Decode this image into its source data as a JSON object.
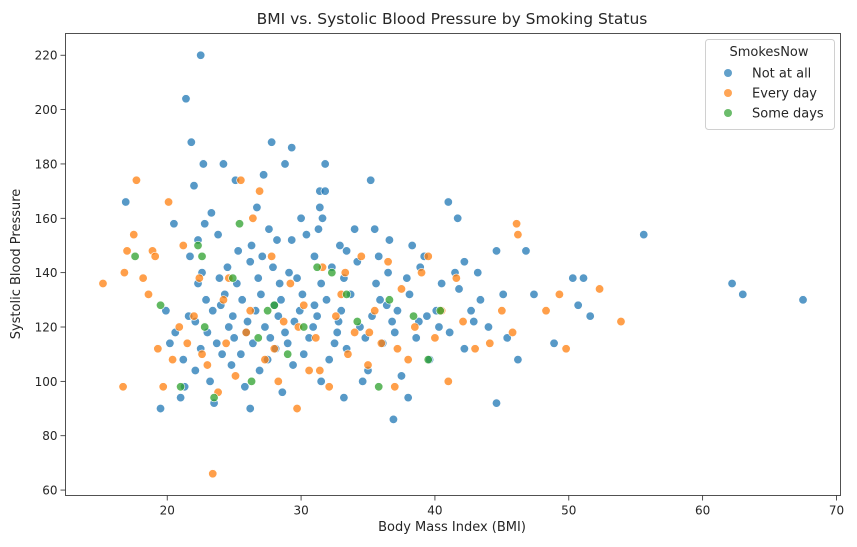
{
  "chart_data": {
    "type": "scatter",
    "title": "BMI vs. Systolic Blood Pressure by Smoking Status",
    "xlabel": "Body Mass Index (BMI)",
    "ylabel": "Systolic Blood Pressure",
    "xlim": [
      12.4,
      70.3
    ],
    "ylim": [
      58,
      228
    ],
    "xticks": [
      20,
      30,
      40,
      50,
      60,
      70
    ],
    "yticks": [
      60,
      80,
      100,
      120,
      140,
      160,
      180,
      200,
      220
    ],
    "grid": false,
    "legend": {
      "title": "SmokesNow",
      "position": "top-right"
    },
    "series": [
      {
        "name": "Not at all",
        "color": "#1f77b4",
        "points": [
          [
            22.5,
            220
          ],
          [
            21.4,
            204
          ],
          [
            21.8,
            188
          ],
          [
            27.8,
            188
          ],
          [
            29.3,
            186
          ],
          [
            22.7,
            180
          ],
          [
            24.2,
            180
          ],
          [
            28.8,
            180
          ],
          [
            31.8,
            180
          ],
          [
            22.0,
            172
          ],
          [
            25.1,
            174
          ],
          [
            35.2,
            174
          ],
          [
            27.2,
            176
          ],
          [
            31.4,
            170
          ],
          [
            31.8,
            170
          ],
          [
            16.9,
            166
          ],
          [
            26.7,
            164
          ],
          [
            31.4,
            164
          ],
          [
            41.0,
            166
          ],
          [
            20.5,
            158
          ],
          [
            23.3,
            162
          ],
          [
            30.0,
            160
          ],
          [
            31.6,
            160
          ],
          [
            41.7,
            160
          ],
          [
            22.8,
            158
          ],
          [
            27.6,
            156
          ],
          [
            31.3,
            156
          ],
          [
            34.0,
            156
          ],
          [
            35.5,
            156
          ],
          [
            22.3,
            152
          ],
          [
            23.8,
            154
          ],
          [
            26.3,
            150
          ],
          [
            28.2,
            152
          ],
          [
            29.3,
            152
          ],
          [
            30.4,
            154
          ],
          [
            32.9,
            150
          ],
          [
            36.6,
            152
          ],
          [
            44.6,
            148
          ],
          [
            46.8,
            148
          ],
          [
            55.6,
            154
          ],
          [
            21.7,
            146
          ],
          [
            25.3,
            148
          ],
          [
            27.1,
            146
          ],
          [
            31.0,
            146
          ],
          [
            33.4,
            148
          ],
          [
            35.8,
            146
          ],
          [
            38.3,
            150
          ],
          [
            39.2,
            146
          ],
          [
            42.2,
            144
          ],
          [
            22.6,
            140
          ],
          [
            24.5,
            142
          ],
          [
            26.2,
            144
          ],
          [
            27.9,
            142
          ],
          [
            29.1,
            140
          ],
          [
            32.3,
            142
          ],
          [
            34.2,
            144
          ],
          [
            36.5,
            140
          ],
          [
            38.9,
            142
          ],
          [
            41.5,
            140
          ],
          [
            43.2,
            140
          ],
          [
            47.4,
            132
          ],
          [
            50.3,
            138
          ],
          [
            50.7,
            128
          ],
          [
            51.1,
            138
          ],
          [
            51.6,
            124
          ],
          [
            62.2,
            136
          ],
          [
            63.0,
            132
          ],
          [
            67.5,
            130
          ],
          [
            48.9,
            114
          ],
          [
            46.2,
            108
          ],
          [
            44.6,
            92
          ],
          [
            36.9,
            86
          ],
          [
            26.2,
            90
          ],
          [
            23.5,
            92
          ],
          [
            19.5,
            90
          ],
          [
            21.0,
            94
          ],
          [
            33.2,
            94
          ],
          [
            38.0,
            94
          ],
          [
            21.3,
            98
          ],
          [
            23.2,
            100
          ],
          [
            25.8,
            98
          ],
          [
            28.6,
            96
          ],
          [
            31.5,
            100
          ],
          [
            34.6,
            100
          ],
          [
            37.5,
            102
          ],
          [
            22.1,
            104
          ],
          [
            24.8,
            106
          ],
          [
            26.9,
            104
          ],
          [
            29.4,
            106
          ],
          [
            32.1,
            108
          ],
          [
            35.0,
            104
          ],
          [
            39.6,
            108
          ],
          [
            42.2,
            112
          ],
          [
            20.2,
            114
          ],
          [
            22.5,
            112
          ],
          [
            24.1,
            110
          ],
          [
            26.4,
            114
          ],
          [
            28.1,
            112
          ],
          [
            30.2,
            110
          ],
          [
            33.4,
            112
          ],
          [
            36.1,
            114
          ],
          [
            38.6,
            116
          ],
          [
            41.1,
            118
          ],
          [
            44.0,
            120
          ],
          [
            45.4,
            116
          ],
          [
            23.0,
            118
          ],
          [
            24.6,
            120
          ],
          [
            25.9,
            118
          ],
          [
            27.3,
            120
          ],
          [
            28.8,
            118
          ],
          [
            30.9,
            120
          ],
          [
            32.7,
            118
          ],
          [
            34.4,
            120
          ],
          [
            36.8,
            122
          ],
          [
            39.4,
            124
          ],
          [
            42.7,
            126
          ],
          [
            21.6,
            124
          ],
          [
            23.4,
            126
          ],
          [
            24.9,
            124
          ],
          [
            26.6,
            126
          ],
          [
            28.3,
            124
          ],
          [
            29.9,
            126
          ],
          [
            31.2,
            124
          ],
          [
            33.0,
            126
          ],
          [
            35.3,
            124
          ],
          [
            37.2,
            126
          ],
          [
            40.1,
            126
          ],
          [
            43.4,
            130
          ],
          [
            22.9,
            130
          ],
          [
            24.3,
            132
          ],
          [
            25.6,
            130
          ],
          [
            27.0,
            132
          ],
          [
            28.5,
            130
          ],
          [
            30.1,
            132
          ],
          [
            31.9,
            130
          ],
          [
            33.7,
            132
          ],
          [
            35.9,
            130
          ],
          [
            38.1,
            132
          ],
          [
            41.8,
            134
          ],
          [
            45.1,
            132
          ],
          [
            22.3,
            136
          ],
          [
            23.9,
            138
          ],
          [
            25.2,
            136
          ],
          [
            26.8,
            138
          ],
          [
            28.4,
            136
          ],
          [
            29.7,
            138
          ],
          [
            31.5,
            136
          ],
          [
            33.2,
            138
          ],
          [
            35.6,
            136
          ],
          [
            37.9,
            138
          ],
          [
            40.5,
            136
          ],
          [
            19.9,
            126
          ],
          [
            20.6,
            118
          ],
          [
            21.2,
            108
          ],
          [
            23.7,
            114
          ],
          [
            25.5,
            110
          ],
          [
            27.5,
            108
          ],
          [
            29.0,
            114
          ],
          [
            30.6,
            116
          ],
          [
            32.5,
            114
          ],
          [
            34.8,
            116
          ],
          [
            37.0,
            118
          ],
          [
            26.0,
            122
          ],
          [
            28.0,
            128
          ],
          [
            29.5,
            122
          ],
          [
            31.0,
            128
          ],
          [
            32.8,
            122
          ],
          [
            24.0,
            128
          ],
          [
            22.1,
            122
          ],
          [
            25.0,
            116
          ],
          [
            27.7,
            116
          ],
          [
            36.4,
            128
          ],
          [
            38.8,
            122
          ],
          [
            40.3,
            120
          ],
          [
            42.9,
            122
          ]
        ]
      },
      {
        "name": "Every day",
        "color": "#ff7f0e",
        "points": [
          [
            15.2,
            136
          ],
          [
            16.7,
            98
          ],
          [
            16.8,
            140
          ],
          [
            17.0,
            148
          ],
          [
            17.5,
            154
          ],
          [
            17.7,
            174
          ],
          [
            18.2,
            138
          ],
          [
            18.6,
            132
          ],
          [
            18.9,
            148
          ],
          [
            19.1,
            146
          ],
          [
            19.3,
            112
          ],
          [
            19.7,
            98
          ],
          [
            20.1,
            166
          ],
          [
            20.9,
            120
          ],
          [
            21.2,
            150
          ],
          [
            21.5,
            114
          ],
          [
            22.0,
            124
          ],
          [
            22.6,
            110
          ],
          [
            23.0,
            106
          ],
          [
            23.4,
            66
          ],
          [
            23.8,
            96
          ],
          [
            24.2,
            130
          ],
          [
            24.6,
            138
          ],
          [
            25.1,
            102
          ],
          [
            25.5,
            174
          ],
          [
            25.9,
            118
          ],
          [
            26.4,
            160
          ],
          [
            26.9,
            170
          ],
          [
            27.3,
            108
          ],
          [
            27.8,
            146
          ],
          [
            28.3,
            100
          ],
          [
            28.7,
            122
          ],
          [
            29.2,
            136
          ],
          [
            29.7,
            90
          ],
          [
            30.2,
            128
          ],
          [
            30.6,
            104
          ],
          [
            31.1,
            116
          ],
          [
            31.6,
            142
          ],
          [
            32.1,
            98
          ],
          [
            32.6,
            124
          ],
          [
            33.0,
            132
          ],
          [
            33.5,
            110
          ],
          [
            34.0,
            118
          ],
          [
            34.5,
            146
          ],
          [
            35.0,
            106
          ],
          [
            35.5,
            126
          ],
          [
            36.0,
            114
          ],
          [
            36.5,
            144
          ],
          [
            37.0,
            98
          ],
          [
            37.5,
            134
          ],
          [
            38.0,
            108
          ],
          [
            38.5,
            120
          ],
          [
            39.0,
            140
          ],
          [
            39.5,
            146
          ],
          [
            40.0,
            116
          ],
          [
            40.5,
            126
          ],
          [
            41.0,
            100
          ],
          [
            41.6,
            138
          ],
          [
            42.1,
            122
          ],
          [
            43.0,
            112
          ],
          [
            44.1,
            114
          ],
          [
            45.0,
            126
          ],
          [
            45.8,
            118
          ],
          [
            46.1,
            158
          ],
          [
            46.2,
            154
          ],
          [
            48.3,
            126
          ],
          [
            49.3,
            132
          ],
          [
            49.8,
            112
          ],
          [
            52.3,
            134
          ],
          [
            53.9,
            122
          ],
          [
            20.4,
            108
          ],
          [
            22.4,
            138
          ],
          [
            24.4,
            114
          ],
          [
            26.2,
            126
          ],
          [
            28.0,
            112
          ],
          [
            29.8,
            120
          ],
          [
            31.4,
            104
          ],
          [
            33.3,
            140
          ],
          [
            35.1,
            118
          ],
          [
            37.2,
            112
          ]
        ]
      },
      {
        "name": "Some days",
        "color": "#2ca02c",
        "points": [
          [
            17.6,
            146
          ],
          [
            19.5,
            128
          ],
          [
            21.0,
            98
          ],
          [
            22.3,
            150
          ],
          [
            22.6,
            146
          ],
          [
            22.8,
            120
          ],
          [
            23.5,
            94
          ],
          [
            24.9,
            138
          ],
          [
            25.4,
            158
          ],
          [
            26.3,
            100
          ],
          [
            26.8,
            116
          ],
          [
            27.5,
            126
          ],
          [
            28.0,
            128
          ],
          [
            29.0,
            110
          ],
          [
            30.2,
            120
          ],
          [
            31.2,
            142
          ],
          [
            32.3,
            140
          ],
          [
            33.4,
            132
          ],
          [
            34.2,
            122
          ],
          [
            35.8,
            98
          ],
          [
            36.6,
            130
          ],
          [
            38.4,
            124
          ],
          [
            39.5,
            108
          ],
          [
            40.4,
            126
          ]
        ]
      }
    ]
  }
}
